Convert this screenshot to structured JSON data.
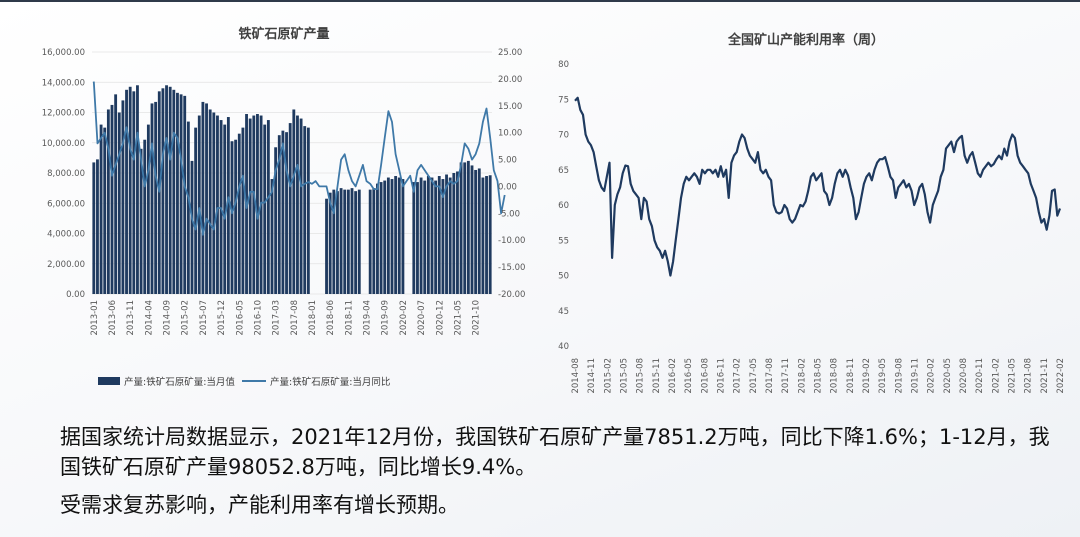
{
  "colors": {
    "bar": "#1f3a5f",
    "line_left": "#3f79a8",
    "line_right": "#1f3a5f",
    "text": "#111111"
  },
  "chart_data": [
    {
      "type": "bar+line",
      "title": "铁矿石原矿产量",
      "y_left_ticks": [
        "16,000.00",
        "14,000.00",
        "12,000.00",
        "10,000.00",
        "8,000.00",
        "6,000.00",
        "4,000.00",
        "2,000.00",
        "0.00"
      ],
      "y_left_lim": [
        0,
        16000
      ],
      "y_right_ticks": [
        "25.00",
        "20.00",
        "15.00",
        "10.00",
        "5.00",
        "0.00",
        "-5.00",
        "-10.00",
        "-15.00",
        "-20.00"
      ],
      "y_right_lim": [
        -20,
        25
      ],
      "x_ticks": [
        "2013-01",
        "2013-06",
        "2013-11",
        "2014-04",
        "2014-09",
        "2015-02",
        "2015-07",
        "2015-12",
        "2016-05",
        "2016-10",
        "2017-03",
        "2017-08",
        "2018-01",
        "2018-06",
        "2018-11",
        "2019-04",
        "2019-09",
        "2020-02",
        "2020-07",
        "2020-12",
        "2021-05",
        "2021-10"
      ],
      "x_start": "2013-01",
      "x_end": "2021-12",
      "legend": [
        "产量:铁矿石原矿量:当月值",
        "产量:铁矿石原矿量:当月同比"
      ],
      "series": [
        {
          "name": "产量:铁矿石原矿量:当月值",
          "kind": "bar",
          "values": [
            8700,
            8900,
            11200,
            11000,
            12200,
            12500,
            13200,
            12000,
            12800,
            13500,
            13700,
            13400,
            13800,
            9600,
            10200,
            11200,
            12600,
            12700,
            13400,
            13600,
            13800,
            13700,
            13500,
            13300,
            13200,
            13100,
            11400,
            8800,
            11000,
            11800,
            12700,
            12600,
            12200,
            12000,
            11800,
            11500,
            11200,
            11700,
            10100,
            10200,
            10600,
            11000,
            11900,
            11600,
            11800,
            11900,
            11800,
            11200,
            11500,
            7600,
            9700,
            10500,
            10800,
            10700,
            11300,
            12200,
            11800,
            11600,
            11100,
            11000,
            null,
            null,
            null,
            null,
            6300,
            6700,
            6900,
            6800,
            7000,
            6900,
            6900,
            7000,
            6800,
            6900,
            null,
            null,
            6900,
            7000,
            7300,
            7400,
            7500,
            7700,
            7600,
            7800,
            7700,
            7600,
            null,
            null,
            7400,
            7400,
            7700,
            7500,
            7800,
            7700,
            7500,
            7800,
            7600,
            7900,
            7700,
            8000,
            8100,
            8700,
            8700,
            8800,
            8500,
            8200,
            8300,
            7700,
            7800,
            7851.2
          ]
        },
        {
          "name": "产量:铁矿石原矿量:当月同比",
          "kind": "line",
          "values": [
            19.5,
            8,
            9,
            10,
            7,
            2,
            4,
            6,
            8,
            11,
            7,
            5,
            10,
            5,
            0,
            3,
            8,
            2,
            -1,
            6,
            9,
            5,
            10,
            9,
            5,
            0,
            -2,
            -6,
            -8,
            -4,
            -9,
            -6,
            -7,
            -8,
            -4,
            -4,
            -6,
            -2,
            -5,
            -3,
            0,
            2,
            -4,
            -1,
            -1,
            -6,
            -3,
            -3,
            -2,
            -1,
            3,
            5,
            8,
            3,
            0,
            2,
            4,
            0,
            0.5,
            0.8,
            0.5,
            1,
            0,
            0,
            0,
            -3,
            -5,
            0,
            5,
            6,
            3,
            1,
            0,
            2,
            4,
            1,
            0.5,
            -0.5,
            -0.5,
            4,
            9,
            14,
            12,
            6,
            3,
            0,
            1,
            2,
            -1,
            3,
            4,
            3,
            2,
            1,
            0,
            0,
            -2,
            0,
            1,
            0.5,
            1,
            4,
            8,
            7,
            5,
            6,
            8,
            12,
            14.5,
            9,
            3,
            1,
            -5,
            -1.6
          ]
        }
      ]
    },
    {
      "type": "line",
      "title": "全国矿山产能利用率（周）",
      "ylim": [
        40,
        80
      ],
      "y_ticks": [
        "80",
        "75",
        "70",
        "65",
        "60",
        "55",
        "50",
        "45",
        "40"
      ],
      "x_ticks": [
        "2014-08",
        "2014-11",
        "2015-02",
        "2015-05",
        "2015-08",
        "2015-11",
        "2016-02",
        "2016-05",
        "2016-08",
        "2016-11",
        "2017-02",
        "2017-05",
        "2017-08",
        "2017-11",
        "2018-02",
        "2018-05",
        "2018-08",
        "2018-11",
        "2019-02",
        "2019-05",
        "2019-08",
        "2019-11",
        "2020-02",
        "2020-05",
        "2020-08",
        "2020-11",
        "2021-02",
        "2021-05",
        "2021-08",
        "2021-11",
        "2022-02"
      ],
      "x_start": "2014-08",
      "x_end": "2022-02",
      "series": [
        {
          "name": "全国矿山产能利用率（周）",
          "values": [
            74.8,
            75.2,
            73.5,
            72.8,
            70,
            69,
            68.5,
            67.5,
            65.5,
            63.5,
            62.5,
            62,
            64,
            66,
            52.5,
            60,
            61.5,
            62.5,
            64.5,
            65.6,
            65.5,
            63,
            62,
            61.5,
            61,
            58,
            61,
            60.5,
            58,
            57,
            55,
            54,
            53.5,
            52.5,
            53.5,
            52,
            50,
            52,
            55,
            58,
            61,
            63,
            64,
            63.5,
            64,
            64.5,
            64,
            63,
            65,
            64.5,
            65,
            65,
            64.5,
            65,
            64,
            65.5,
            64,
            65,
            61,
            66,
            67,
            67.5,
            69,
            70,
            69.5,
            68,
            67,
            66.5,
            66,
            67.5,
            65,
            64.5,
            65,
            64,
            63.5,
            60,
            59,
            58.8,
            59,
            60,
            59.5,
            58,
            57.5,
            58,
            59,
            60,
            59.8,
            60.5,
            62,
            64,
            64.5,
            63.5,
            64,
            64.5,
            62,
            61.5,
            60,
            61,
            63,
            64.5,
            65,
            64,
            65,
            64.2,
            62.5,
            61,
            58,
            59,
            61,
            63,
            64,
            64.5,
            63.5,
            65,
            66,
            66.5,
            66.5,
            66.8,
            65.5,
            64,
            63.5,
            61,
            62.5,
            63,
            63.5,
            62.5,
            63,
            62,
            60,
            61,
            62.5,
            63,
            61.5,
            59,
            57.5,
            60,
            61,
            62,
            64,
            65,
            68,
            68.5,
            69,
            67.5,
            69,
            69.5,
            69.8,
            67,
            66,
            67,
            67.5,
            66,
            64.5,
            64,
            65,
            65.5,
            66,
            65.5,
            65.8,
            66.5,
            67,
            66.5,
            68,
            67,
            69,
            70,
            69.5,
            67,
            66,
            65.5,
            65,
            64.5,
            63,
            62,
            61,
            59,
            57.5,
            58,
            56.5,
            58.5,
            62,
            62.2,
            58.5,
            59.5
          ]
        }
      ]
    }
  ],
  "caption": {
    "p1": "据国家统计局数据显示，2021年12月份，我国铁矿石原矿产量7851.2万吨，同比下降1.6%；1-12月，我国铁矿石原矿产量98052.8万吨，同比增长9.4%。",
    "p2": "受需求复苏影响，产能利用率有增长预期。"
  }
}
